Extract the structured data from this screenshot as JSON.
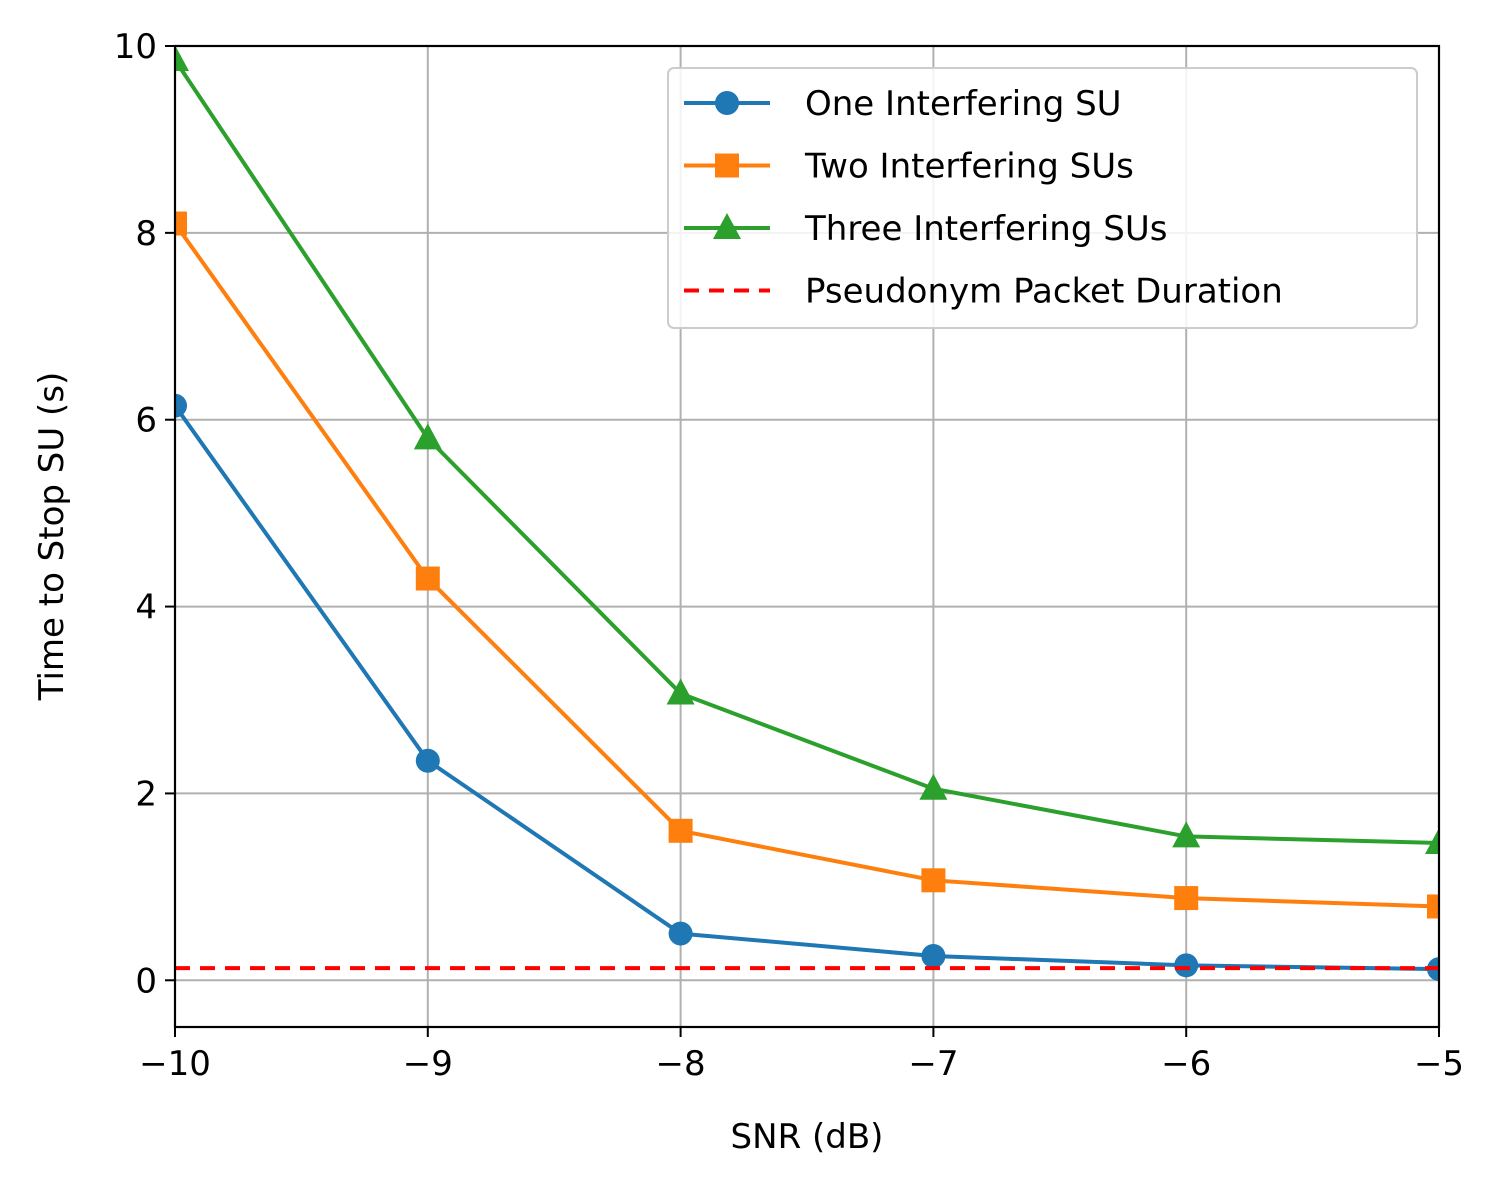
{
  "chart_data": {
    "type": "line",
    "title": "",
    "xlabel": "SNR (dB)",
    "ylabel": "Time to Stop SU (s)",
    "xlim": [
      -10,
      -5
    ],
    "ylim": [
      -0.5,
      10
    ],
    "x_ticks": [
      -10,
      -9,
      -8,
      -7,
      -6,
      -5
    ],
    "x_tick_labels": [
      "−10",
      "−9",
      "−8",
      "−7",
      "−6",
      "−5"
    ],
    "y_ticks": [
      0,
      2,
      4,
      6,
      8,
      10
    ],
    "y_tick_labels": [
      "0",
      "2",
      "4",
      "6",
      "8",
      "10"
    ],
    "grid": true,
    "legend_position": "top-right",
    "x": [
      -10,
      -9,
      -8,
      -7,
      -6,
      -5
    ],
    "series": [
      {
        "name": "One Interfering SU",
        "values": [
          6.15,
          2.35,
          0.5,
          0.26,
          0.16,
          0.12
        ],
        "color": "#1f77b4",
        "marker": "circle",
        "line": "solid"
      },
      {
        "name": "Two Interfering SUs",
        "values": [
          8.1,
          4.3,
          1.6,
          1.07,
          0.88,
          0.79
        ],
        "color": "#ff7f0e",
        "marker": "square",
        "line": "solid"
      },
      {
        "name": "Three Interfering SUs",
        "values": [
          9.85,
          5.8,
          3.07,
          2.05,
          1.54,
          1.47
        ],
        "color": "#2ca02c",
        "marker": "triangle",
        "line": "solid"
      },
      {
        "name": "Pseudonym Packet Duration",
        "constant": 0.13,
        "color": "#ff0000",
        "marker": "none",
        "line": "dashed"
      }
    ]
  }
}
